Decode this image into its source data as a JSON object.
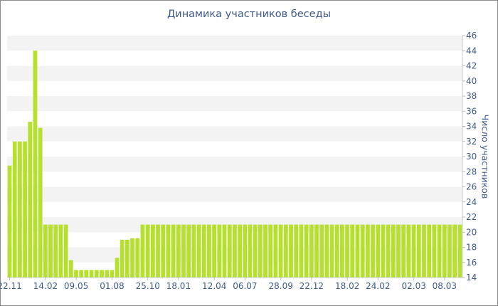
{
  "chart_data": {
    "type": "bar",
    "title": "Динамика участников беседы",
    "xlabel": "",
    "ylabel": "Число участников",
    "ylim": [
      14,
      46
    ],
    "yticks": [
      14,
      16,
      18,
      20,
      22,
      24,
      26,
      28,
      30,
      32,
      34,
      36,
      38,
      40,
      42,
      44,
      46
    ],
    "xtick_labels": [
      "22.11",
      "14.02",
      "09.05",
      "01.08",
      "25.10",
      "18.01",
      "12.04",
      "06.07",
      "28.09",
      "22.12",
      "18.02",
      "24.02",
      "02.03",
      "08.03"
    ],
    "xtick_positions": [
      0,
      7,
      13,
      20,
      27,
      33,
      40,
      46,
      53,
      59,
      66,
      72,
      79,
      85
    ],
    "values": [
      28.8,
      32,
      32,
      32,
      34.6,
      44,
      33.8,
      21,
      21,
      21,
      21,
      21,
      16.3,
      15,
      15,
      15,
      15,
      15,
      15,
      15,
      15,
      16.6,
      19,
      19,
      19.2,
      19.2,
      21,
      21,
      21,
      21,
      21,
      21,
      21,
      21,
      21,
      21,
      21,
      21,
      21,
      21,
      21,
      21,
      21,
      21,
      21,
      21,
      21,
      21,
      21,
      21,
      21,
      21,
      21,
      21,
      21,
      21,
      21,
      21,
      21,
      21,
      21,
      21,
      21,
      21,
      21,
      21,
      21,
      21,
      21,
      21,
      21,
      21,
      21,
      21,
      21,
      21,
      21,
      21,
      21,
      21,
      21,
      21,
      21,
      21,
      21,
      21,
      21,
      21,
      21
    ],
    "bar_color": "#b5e02e",
    "grid": true,
    "grid_band_color": "#f3f3f3",
    "text_color": "#3e5a8f"
  }
}
